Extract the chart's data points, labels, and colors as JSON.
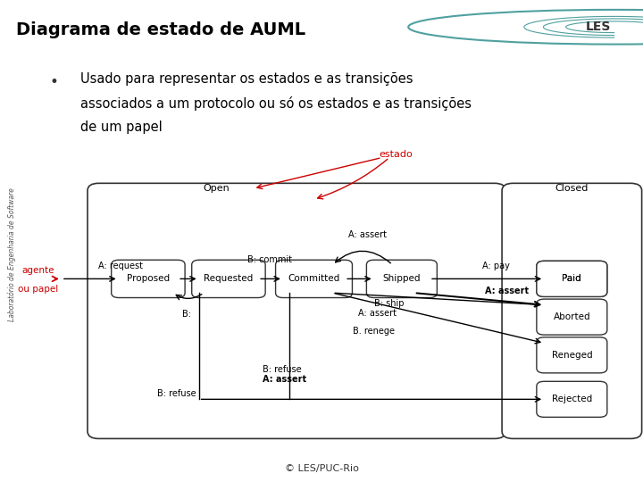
{
  "title": "Diagrama de estado de AUML",
  "header_bg": "#a8c8cc",
  "body_bg": "#f0f0f0",
  "footer_bg": "#a8c8cc",
  "title_color": "#000000",
  "title_fontsize": 14,
  "bullet_text_line1": "Usado para representar os estados e as transições",
  "bullet_text_line2": "associados a um protocolo ou só os estados e as transições",
  "bullet_text_line3": "de um papel",
  "bullet_fontsize": 10.5,
  "footer_text": "© LES/PUC-Rio",
  "sidebar_text": "Laboratório de Engenharia de Software",
  "sidebar_color": "#555555",
  "label_estado": "estado",
  "label_agente": "agente\nou papel",
  "label_color": "#cc0000",
  "state_open_label": "Open",
  "state_closed_label": "Closed"
}
